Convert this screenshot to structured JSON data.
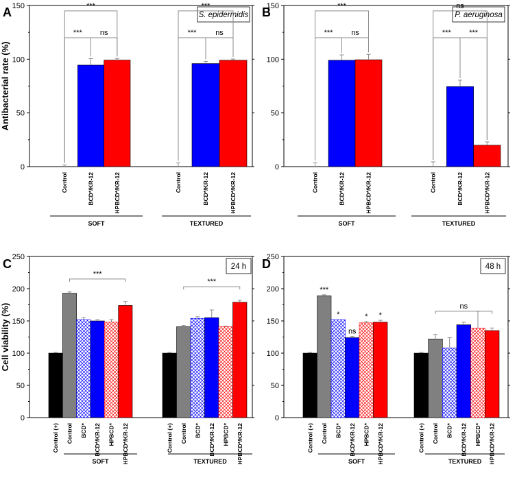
{
  "colors": {
    "black": "#000000",
    "gray": "#808080",
    "blue": "#0000ff",
    "red": "#ff0000",
    "whisker": "#8a8a8a"
  },
  "chart_data": [
    {
      "panel": "A",
      "type": "bar",
      "title": "S. epidermidis",
      "ylabel": "Antibacterial rate (%)",
      "ylim": [
        0,
        150
      ],
      "yticks": [
        0,
        50,
        100,
        150
      ],
      "groups": [
        {
          "name": "SOFT",
          "bars": [
            {
              "label": "Control",
              "value": 0,
              "error": 1.5,
              "color": "black",
              "pattern": "solid"
            },
            {
              "label": "BCD*/KR-12",
              "value": 94.5,
              "error": 6,
              "color": "blue",
              "pattern": "solid"
            },
            {
              "label": "HPBCD*/KR-12",
              "value": 99.2,
              "error": 1.5,
              "color": "red",
              "pattern": "solid"
            }
          ]
        },
        {
          "name": "TEXTURED",
          "bars": [
            {
              "label": "Control",
              "value": 0,
              "error": 3.5,
              "color": "black",
              "pattern": "solid"
            },
            {
              "label": "BCD*/KR-12",
              "value": 96,
              "error": 2,
              "color": "blue",
              "pattern": "solid"
            },
            {
              "label": "HPBCD*/KR-12",
              "value": 99,
              "error": 1.2,
              "color": "red",
              "pattern": "solid"
            }
          ]
        }
      ],
      "annotations": [
        {
          "group": 0,
          "from": 0,
          "to": 2,
          "level": 145,
          "label": "***"
        },
        {
          "group": 0,
          "from": 0,
          "to": 1,
          "level": 120,
          "label": "***"
        },
        {
          "group": 0,
          "from": 1,
          "to": 2,
          "level": 120,
          "label": "ns"
        },
        {
          "group": 1,
          "from": 0,
          "to": 2,
          "level": 145,
          "label": "***"
        },
        {
          "group": 1,
          "from": 0,
          "to": 1,
          "level": 120,
          "label": "***"
        },
        {
          "group": 1,
          "from": 1,
          "to": 2,
          "level": 120,
          "label": "ns"
        }
      ]
    },
    {
      "panel": "B",
      "type": "bar",
      "title": "P. aeruginosa",
      "ylabel": "",
      "ylim": [
        0,
        150
      ],
      "yticks": [
        0,
        50,
        100,
        150
      ],
      "groups": [
        {
          "name": "SOFT",
          "bars": [
            {
              "label": "Control",
              "value": 0,
              "error": 3.5,
              "color": "black",
              "pattern": "solid"
            },
            {
              "label": "BCD*/KR-12",
              "value": 99,
              "error": 5,
              "color": "blue",
              "pattern": "solid"
            },
            {
              "label": "HPBCD*/KR-12",
              "value": 99.5,
              "error": 5,
              "color": "red",
              "pattern": "solid"
            }
          ]
        },
        {
          "name": "TEXTURED",
          "bars": [
            {
              "label": "Control",
              "value": 0,
              "error": 4.5,
              "color": "black",
              "pattern": "solid"
            },
            {
              "label": "BCD*/KR-12",
              "value": 74.5,
              "error": 6,
              "color": "blue",
              "pattern": "solid"
            },
            {
              "label": "HPBCD*/KR-12",
              "value": 20,
              "error": 3,
              "color": "red",
              "pattern": "solid"
            }
          ]
        }
      ],
      "annotations": [
        {
          "group": 0,
          "from": 0,
          "to": 2,
          "level": 145,
          "label": "***"
        },
        {
          "group": 0,
          "from": 0,
          "to": 1,
          "level": 120,
          "label": "***"
        },
        {
          "group": 0,
          "from": 1,
          "to": 2,
          "level": 120,
          "label": "ns"
        },
        {
          "group": 1,
          "from": 0,
          "to": 2,
          "level": 145,
          "label": "ns"
        },
        {
          "group": 1,
          "from": 0,
          "to": 1,
          "level": 120,
          "label": "***"
        },
        {
          "group": 1,
          "from": 1,
          "to": 2,
          "level": 120,
          "label": "***"
        }
      ]
    },
    {
      "panel": "C",
      "type": "bar",
      "title": "24 h",
      "ylabel": "Cell viability (%)",
      "ylim": [
        0,
        250
      ],
      "yticks": [
        0,
        50,
        100,
        150,
        200,
        250
      ],
      "groups": [
        {
          "name": "SOFT",
          "bars": [
            {
              "label": "Control (+)",
              "value": 100,
              "error": 1.5,
              "color": "black",
              "pattern": "solid"
            },
            {
              "label": "Control",
              "value": 193,
              "error": 2,
              "color": "gray",
              "pattern": "solid"
            },
            {
              "label": "BCD*",
              "value": 152,
              "error": 3,
              "color": "blue",
              "pattern": "hatch"
            },
            {
              "label": "BCD*/KR-12",
              "value": 150,
              "error": 2,
              "color": "blue",
              "pattern": "solid"
            },
            {
              "label": "HPBCD*",
              "value": 148,
              "error": 4,
              "color": "red",
              "pattern": "hatch"
            },
            {
              "label": "HPBCD*/KR-12",
              "value": 174,
              "error": 6,
              "color": "red",
              "pattern": "solid"
            }
          ]
        },
        {
          "name": "TEXTURED",
          "bars": [
            {
              "label": "Control (+)",
              "value": 100,
              "error": 1.5,
              "color": "black",
              "pattern": "solid"
            },
            {
              "label": "Control",
              "value": 141,
              "error": 2,
              "color": "gray",
              "pattern": "solid"
            },
            {
              "label": "BCD*",
              "value": 154,
              "error": 2.5,
              "color": "blue",
              "pattern": "hatch"
            },
            {
              "label": "BCD*/KR-12",
              "value": 155,
              "error": 12,
              "color": "blue",
              "pattern": "solid"
            },
            {
              "label": "HPBCD*",
              "value": 141,
              "error": 1,
              "color": "red",
              "pattern": "hatch"
            },
            {
              "label": "HPBCD*/KR-12",
              "value": 179,
              "error": 3,
              "color": "red",
              "pattern": "solid"
            }
          ]
        }
      ],
      "annotations": [
        {
          "group": 0,
          "from": 1,
          "to": 5,
          "level": 215,
          "label": "***"
        },
        {
          "group": 1,
          "from": 1,
          "to": 5,
          "level": 203,
          "label": "***"
        }
      ]
    },
    {
      "panel": "D",
      "type": "bar",
      "title": "48 h",
      "ylabel": "",
      "ylim": [
        0,
        250
      ],
      "yticks": [
        0,
        50,
        100,
        150,
        200,
        250
      ],
      "groups": [
        {
          "name": "SOFT",
          "bars": [
            {
              "label": "Control (+)",
              "value": 100,
              "error": 1.5,
              "color": "black",
              "pattern": "solid"
            },
            {
              "label": "Control",
              "value": 189,
              "error": 1.5,
              "color": "gray",
              "pattern": "solid",
              "sig": "***"
            },
            {
              "label": "BCD*",
              "value": 152,
              "error": 0,
              "color": "blue",
              "pattern": "hatch",
              "sig": "*"
            },
            {
              "label": "BCD*/KR-12",
              "value": 124,
              "error": 2,
              "color": "blue",
              "pattern": "solid",
              "sig": "ns"
            },
            {
              "label": "HPBCD*",
              "value": 147,
              "error": 2,
              "color": "red",
              "pattern": "hatch",
              "sig": "*"
            },
            {
              "label": "HPBCD*/KR-12",
              "value": 148,
              "error": 3,
              "color": "red",
              "pattern": "solid",
              "sig": "*"
            }
          ]
        },
        {
          "name": "TEXTURED",
          "bars": [
            {
              "label": "Control (+)",
              "value": 100,
              "error": 1.5,
              "color": "black",
              "pattern": "solid"
            },
            {
              "label": "Control",
              "value": 122,
              "error": 7,
              "color": "gray",
              "pattern": "solid"
            },
            {
              "label": "BCD*",
              "value": 108,
              "error": 16,
              "color": "blue",
              "pattern": "hatch"
            },
            {
              "label": "BCD*/KR-12",
              "value": 144,
              "error": 4,
              "color": "blue",
              "pattern": "solid"
            },
            {
              "label": "HPBCD*",
              "value": 139,
              "error": 26,
              "color": "red",
              "pattern": "hatch"
            },
            {
              "label": "HPBCD*/KR-12",
              "value": 135,
              "error": 4,
              "color": "red",
              "pattern": "solid"
            }
          ]
        }
      ],
      "annotations": [
        {
          "group": 1,
          "from": 1,
          "to": 5,
          "level": 165,
          "label": "ns"
        }
      ]
    }
  ]
}
